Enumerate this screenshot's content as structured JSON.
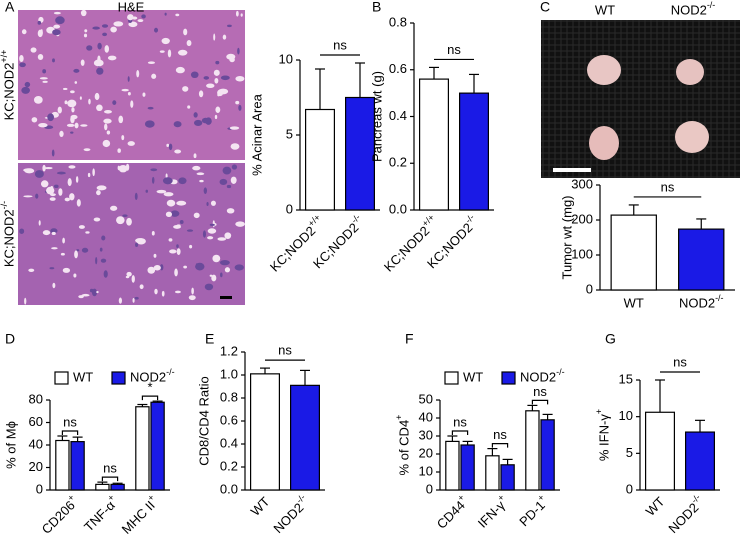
{
  "chart_data": [
    {
      "type": "bar",
      "panel": "A",
      "image_title": "H&E",
      "image_labels": [
        "KC;NOD2+/+",
        "KC;NOD2-/-"
      ],
      "ylabel": "% Acinar Area",
      "categories": [
        "KC;NOD2+/+",
        "KC;NOD2-/-"
      ],
      "values": [
        6.7,
        7.5
      ],
      "errors": [
        2.7,
        2.3
      ],
      "colors": [
        "#ffffff",
        "#1a1ae6"
      ],
      "ylim": [
        0,
        10
      ],
      "yticks": [
        0,
        5,
        10
      ],
      "annotations": [
        "ns"
      ]
    },
    {
      "type": "bar",
      "panel": "B",
      "ylabel": "Pancreas wt (g)",
      "categories": [
        "KC;NOD2+/+",
        "KC;NOD2-/-"
      ],
      "values": [
        0.56,
        0.5
      ],
      "errors": [
        0.05,
        0.08
      ],
      "colors": [
        "#ffffff",
        "#1a1ae6"
      ],
      "ylim": [
        0,
        0.8
      ],
      "yticks": [
        {
          "value": 0,
          "label": "0.0"
        },
        0.2,
        0.4,
        0.6,
        0.8
      ],
      "annotations": [
        "ns"
      ]
    },
    {
      "type": "bar",
      "panel": "C",
      "photo_labels": [
        "WT",
        "NOD2-/-"
      ],
      "ylabel": "Tumor wt (mg)",
      "categories": [
        "WT",
        "NOD2-/-"
      ],
      "values": [
        214,
        174
      ],
      "errors": [
        29,
        29
      ],
      "colors": [
        "#ffffff",
        "#1a1ae6"
      ],
      "ylim": [
        0,
        300
      ],
      "yticks": [
        0,
        100,
        200,
        300
      ],
      "annotations": [
        "ns"
      ]
    },
    {
      "type": "grouped-bar",
      "panel": "D",
      "ylabel": "% of Mϕ",
      "categories": [
        "CD206+",
        "TNF-α+",
        "MHC II+"
      ],
      "series": [
        {
          "name": "WT",
          "color": "#ffffff",
          "values": [
            44,
            5,
            74
          ],
          "errors": [
            4,
            2,
            2
          ]
        },
        {
          "name": "NOD2-/-",
          "color": "#1a1ae6",
          "values": [
            43,
            5,
            78
          ],
          "errors": [
            4,
            1,
            1
          ]
        }
      ],
      "ylim": [
        0,
        80
      ],
      "yticks": [
        0,
        20,
        40,
        60,
        80
      ],
      "annotations": [
        "ns",
        "ns",
        "*"
      ]
    },
    {
      "type": "bar",
      "panel": "E",
      "ylabel": "CD8/CD4 Ratio",
      "categories": [
        "WT",
        "NOD2-/-"
      ],
      "values": [
        1.01,
        0.91
      ],
      "errors": [
        0.05,
        0.13
      ],
      "colors": [
        "#ffffff",
        "#1a1ae6"
      ],
      "ylim": [
        0,
        1.2
      ],
      "yticks": [
        {
          "value": 0,
          "label": "0.0"
        },
        0.2,
        0.4,
        0.6,
        0.8,
        {
          "value": 1,
          "label": "1.0"
        },
        1.2
      ],
      "annotations": [
        "ns"
      ]
    },
    {
      "type": "grouped-bar",
      "panel": "F",
      "ylabel": "% of CD4+",
      "categories": [
        "CD44+",
        "IFN-γ+",
        "PD-1+"
      ],
      "series": [
        {
          "name": "WT",
          "color": "#ffffff",
          "values": [
            27,
            19,
            44
          ],
          "errors": [
            3,
            4,
            3
          ]
        },
        {
          "name": "NOD2-/-",
          "color": "#1a1ae6",
          "values": [
            25,
            14,
            39
          ],
          "errors": [
            2,
            3,
            3
          ]
        }
      ],
      "ylim": [
        0,
        50
      ],
      "yticks": [
        0,
        10,
        20,
        30,
        40,
        50
      ],
      "annotations": [
        "ns",
        "ns",
        "ns"
      ]
    },
    {
      "type": "bar",
      "panel": "G",
      "ylabel": "% IFN-γ+",
      "categories": [
        "WT",
        "NOD2-/-"
      ],
      "values": [
        10.6,
        7.9
      ],
      "errors": [
        4.4,
        1.6
      ],
      "colors": [
        "#ffffff",
        "#1a1ae6"
      ],
      "ylim": [
        0,
        15
      ],
      "yticks": [
        0,
        5,
        10,
        15
      ],
      "annotations": [
        "ns"
      ]
    }
  ]
}
